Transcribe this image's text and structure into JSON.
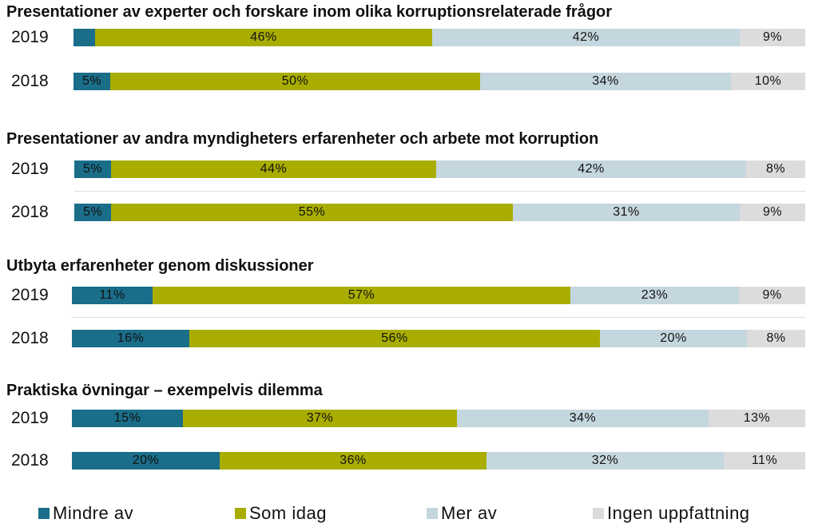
{
  "chart_data": {
    "type": "bar",
    "orientation": "horizontal",
    "stacked": "percent",
    "categories": [
      "Mindre av",
      "Som idag",
      "Mer av",
      "Ingen uppfattning"
    ],
    "colors": {
      "Mindre av": "#1a6e8a",
      "Som idag": "#a8ad00",
      "Mer av": "#c4d6de",
      "Ingen uppfattning": "#dcdcdc"
    },
    "panels": [
      {
        "title": "Presentationer av experter och forskare inom olika korruptionsrelaterade frågor",
        "rows": [
          {
            "year": "2019",
            "values": [
              3,
              46,
              42,
              9
            ],
            "labels": [
              "",
              "46%",
              "42%",
              "9%"
            ]
          },
          {
            "year": "2018",
            "values": [
              5,
              50,
              34,
              10
            ],
            "labels": [
              "5%",
              "50%",
              "34%",
              "10%"
            ]
          }
        ]
      },
      {
        "title": "Presentationer av andra myndigheters erfarenheter och arbete mot korruption",
        "rows": [
          {
            "year": "2019",
            "values": [
              5,
              44,
              42,
              8
            ],
            "labels": [
              "5%",
              "44%",
              "42%",
              "8%"
            ]
          },
          {
            "year": "2018",
            "values": [
              5,
              55,
              31,
              9
            ],
            "labels": [
              "5%",
              "55%",
              "31%",
              "9%"
            ]
          }
        ]
      },
      {
        "title": "Utbyta erfarenheter genom diskussioner",
        "rows": [
          {
            "year": "2019",
            "values": [
              11,
              57,
              23,
              9
            ],
            "labels": [
              "11%",
              "57%",
              "23%",
              "9%"
            ]
          },
          {
            "year": "2018",
            "values": [
              16,
              56,
              20,
              8
            ],
            "labels": [
              "16%",
              "56%",
              "20%",
              "8%"
            ]
          }
        ]
      },
      {
        "title": "Praktiska övningar – exempelvis dilemma",
        "rows": [
          {
            "year": "2019",
            "values": [
              15,
              37,
              34,
              13
            ],
            "labels": [
              "15%",
              "37%",
              "34%",
              "13%"
            ]
          },
          {
            "year": "2018",
            "values": [
              20,
              36,
              32,
              11
            ],
            "labels": [
              "20%",
              "36%",
              "32%",
              "11%"
            ]
          }
        ]
      }
    ],
    "legend": {
      "position": "bottom",
      "items": [
        {
          "label": "Mindre av",
          "color": "#1a6e8a"
        },
        {
          "label": "Som idag",
          "color": "#a8ad00"
        },
        {
          "label": "Mer av",
          "color": "#c4d6de"
        },
        {
          "label": "Ingen uppfattning",
          "color": "#dcdcdc"
        }
      ]
    }
  }
}
